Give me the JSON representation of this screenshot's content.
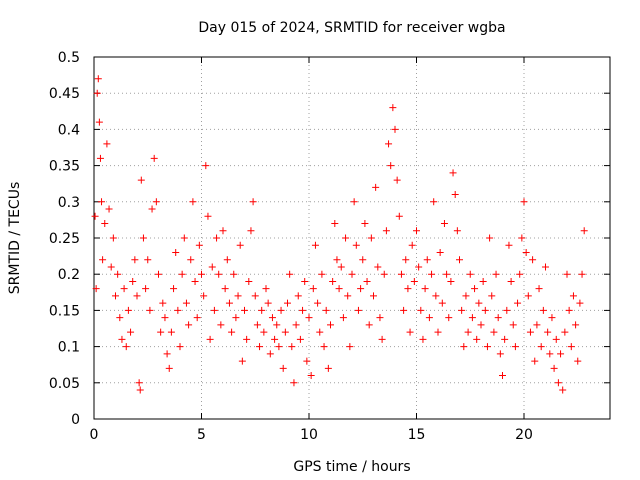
{
  "chart_data": {
    "type": "scatter",
    "title": "Day 015 of 2024, SRMTID for receiver wgba",
    "xlabel": "GPS time / hours",
    "ylabel": "SRMTID / TECUs",
    "xlim": [
      0,
      24
    ],
    "ylim": [
      0,
      0.5
    ],
    "xticks": [
      0,
      5,
      10,
      15,
      20
    ],
    "yticks": [
      0,
      0.05,
      0.1,
      0.15,
      0.2,
      0.25,
      0.3,
      0.35,
      0.4,
      0.45,
      0.5
    ],
    "grid": true,
    "marker": "+",
    "marker_color": "#ff0000",
    "series": [
      {
        "name": "SRMTID",
        "points": [
          [
            0.05,
            0.28
          ],
          [
            0.1,
            0.18
          ],
          [
            0.15,
            0.45
          ],
          [
            0.2,
            0.47
          ],
          [
            0.25,
            0.41
          ],
          [
            0.3,
            0.36
          ],
          [
            0.35,
            0.3
          ],
          [
            0.4,
            0.22
          ],
          [
            0.5,
            0.27
          ],
          [
            0.6,
            0.38
          ],
          [
            0.7,
            0.29
          ],
          [
            0.8,
            0.21
          ],
          [
            0.9,
            0.25
          ],
          [
            1.0,
            0.17
          ],
          [
            1.1,
            0.2
          ],
          [
            1.2,
            0.14
          ],
          [
            1.3,
            0.11
          ],
          [
            1.4,
            0.18
          ],
          [
            1.5,
            0.1
          ],
          [
            1.6,
            0.15
          ],
          [
            1.7,
            0.12
          ],
          [
            1.8,
            0.19
          ],
          [
            1.9,
            0.22
          ],
          [
            2.0,
            0.17
          ],
          [
            2.1,
            0.05
          ],
          [
            2.15,
            0.04
          ],
          [
            2.2,
            0.33
          ],
          [
            2.3,
            0.25
          ],
          [
            2.4,
            0.18
          ],
          [
            2.5,
            0.22
          ],
          [
            2.6,
            0.15
          ],
          [
            2.7,
            0.29
          ],
          [
            2.8,
            0.36
          ],
          [
            2.9,
            0.3
          ],
          [
            3.0,
            0.2
          ],
          [
            3.1,
            0.12
          ],
          [
            3.2,
            0.16
          ],
          [
            3.3,
            0.14
          ],
          [
            3.4,
            0.09
          ],
          [
            3.5,
            0.07
          ],
          [
            3.6,
            0.12
          ],
          [
            3.7,
            0.18
          ],
          [
            3.8,
            0.23
          ],
          [
            3.9,
            0.15
          ],
          [
            4.0,
            0.1
          ],
          [
            4.1,
            0.2
          ],
          [
            4.2,
            0.25
          ],
          [
            4.3,
            0.16
          ],
          [
            4.4,
            0.13
          ],
          [
            4.5,
            0.22
          ],
          [
            4.6,
            0.3
          ],
          [
            4.7,
            0.19
          ],
          [
            4.8,
            0.14
          ],
          [
            4.9,
            0.24
          ],
          [
            5.0,
            0.2
          ],
          [
            5.1,
            0.17
          ],
          [
            5.2,
            0.35
          ],
          [
            5.3,
            0.28
          ],
          [
            5.4,
            0.11
          ],
          [
            5.5,
            0.21
          ],
          [
            5.6,
            0.15
          ],
          [
            5.7,
            0.25
          ],
          [
            5.8,
            0.2
          ],
          [
            5.9,
            0.13
          ],
          [
            6.0,
            0.26
          ],
          [
            6.1,
            0.18
          ],
          [
            6.2,
            0.22
          ],
          [
            6.3,
            0.16
          ],
          [
            6.4,
            0.12
          ],
          [
            6.5,
            0.2
          ],
          [
            6.6,
            0.14
          ],
          [
            6.7,
            0.17
          ],
          [
            6.8,
            0.24
          ],
          [
            6.9,
            0.08
          ],
          [
            7.0,
            0.15
          ],
          [
            7.1,
            0.11
          ],
          [
            7.2,
            0.19
          ],
          [
            7.3,
            0.26
          ],
          [
            7.4,
            0.3
          ],
          [
            7.5,
            0.17
          ],
          [
            7.6,
            0.13
          ],
          [
            7.7,
            0.1
          ],
          [
            7.8,
            0.15
          ],
          [
            7.9,
            0.12
          ],
          [
            8.0,
            0.18
          ],
          [
            8.1,
            0.16
          ],
          [
            8.2,
            0.09
          ],
          [
            8.3,
            0.14
          ],
          [
            8.4,
            0.11
          ],
          [
            8.5,
            0.13
          ],
          [
            8.6,
            0.1
          ],
          [
            8.7,
            0.15
          ],
          [
            8.8,
            0.07
          ],
          [
            8.9,
            0.12
          ],
          [
            9.0,
            0.16
          ],
          [
            9.1,
            0.2
          ],
          [
            9.2,
            0.1
          ],
          [
            9.3,
            0.05
          ],
          [
            9.4,
            0.13
          ],
          [
            9.5,
            0.17
          ],
          [
            9.6,
            0.11
          ],
          [
            9.7,
            0.15
          ],
          [
            9.8,
            0.19
          ],
          [
            9.9,
            0.08
          ],
          [
            10.0,
            0.14
          ],
          [
            10.1,
            0.06
          ],
          [
            10.2,
            0.18
          ],
          [
            10.3,
            0.24
          ],
          [
            10.4,
            0.16
          ],
          [
            10.5,
            0.12
          ],
          [
            10.6,
            0.2
          ],
          [
            10.7,
            0.1
          ],
          [
            10.8,
            0.15
          ],
          [
            10.9,
            0.07
          ],
          [
            11.0,
            0.13
          ],
          [
            11.1,
            0.19
          ],
          [
            11.2,
            0.27
          ],
          [
            11.3,
            0.22
          ],
          [
            11.4,
            0.18
          ],
          [
            11.5,
            0.21
          ],
          [
            11.6,
            0.14
          ],
          [
            11.7,
            0.25
          ],
          [
            11.8,
            0.17
          ],
          [
            11.9,
            0.1
          ],
          [
            12.0,
            0.2
          ],
          [
            12.1,
            0.3
          ],
          [
            12.2,
            0.24
          ],
          [
            12.3,
            0.15
          ],
          [
            12.4,
            0.18
          ],
          [
            12.5,
            0.22
          ],
          [
            12.6,
            0.27
          ],
          [
            12.7,
            0.19
          ],
          [
            12.8,
            0.13
          ],
          [
            12.9,
            0.25
          ],
          [
            13.0,
            0.17
          ],
          [
            13.1,
            0.32
          ],
          [
            13.2,
            0.21
          ],
          [
            13.3,
            0.14
          ],
          [
            13.4,
            0.11
          ],
          [
            13.5,
            0.2
          ],
          [
            13.6,
            0.26
          ],
          [
            13.7,
            0.38
          ],
          [
            13.8,
            0.35
          ],
          [
            13.9,
            0.43
          ],
          [
            14.0,
            0.4
          ],
          [
            14.1,
            0.33
          ],
          [
            14.2,
            0.28
          ],
          [
            14.3,
            0.2
          ],
          [
            14.4,
            0.15
          ],
          [
            14.5,
            0.22
          ],
          [
            14.6,
            0.18
          ],
          [
            14.7,
            0.12
          ],
          [
            14.8,
            0.24
          ],
          [
            14.9,
            0.19
          ],
          [
            15.0,
            0.26
          ],
          [
            15.1,
            0.21
          ],
          [
            15.2,
            0.15
          ],
          [
            15.3,
            0.11
          ],
          [
            15.4,
            0.18
          ],
          [
            15.5,
            0.22
          ],
          [
            15.6,
            0.14
          ],
          [
            15.7,
            0.2
          ],
          [
            15.8,
            0.3
          ],
          [
            15.9,
            0.17
          ],
          [
            16.0,
            0.12
          ],
          [
            16.1,
            0.23
          ],
          [
            16.2,
            0.16
          ],
          [
            16.3,
            0.27
          ],
          [
            16.4,
            0.2
          ],
          [
            16.5,
            0.14
          ],
          [
            16.6,
            0.19
          ],
          [
            16.7,
            0.34
          ],
          [
            16.8,
            0.31
          ],
          [
            16.9,
            0.26
          ],
          [
            17.0,
            0.22
          ],
          [
            17.1,
            0.15
          ],
          [
            17.2,
            0.1
          ],
          [
            17.3,
            0.17
          ],
          [
            17.4,
            0.12
          ],
          [
            17.5,
            0.2
          ],
          [
            17.6,
            0.14
          ],
          [
            17.7,
            0.18
          ],
          [
            17.8,
            0.11
          ],
          [
            17.9,
            0.16
          ],
          [
            18.0,
            0.13
          ],
          [
            18.1,
            0.19
          ],
          [
            18.2,
            0.15
          ],
          [
            18.3,
            0.1
          ],
          [
            18.4,
            0.25
          ],
          [
            18.5,
            0.17
          ],
          [
            18.6,
            0.12
          ],
          [
            18.7,
            0.2
          ],
          [
            18.8,
            0.14
          ],
          [
            18.9,
            0.09
          ],
          [
            19.0,
            0.06
          ],
          [
            19.1,
            0.11
          ],
          [
            19.2,
            0.15
          ],
          [
            19.3,
            0.24
          ],
          [
            19.4,
            0.19
          ],
          [
            19.5,
            0.13
          ],
          [
            19.6,
            0.1
          ],
          [
            19.7,
            0.16
          ],
          [
            19.8,
            0.2
          ],
          [
            19.9,
            0.25
          ],
          [
            20.0,
            0.3
          ],
          [
            20.1,
            0.23
          ],
          [
            20.2,
            0.17
          ],
          [
            20.3,
            0.12
          ],
          [
            20.4,
            0.22
          ],
          [
            20.5,
            0.08
          ],
          [
            20.6,
            0.13
          ],
          [
            20.7,
            0.18
          ],
          [
            20.8,
            0.1
          ],
          [
            20.9,
            0.15
          ],
          [
            21.0,
            0.21
          ],
          [
            21.1,
            0.12
          ],
          [
            21.2,
            0.09
          ],
          [
            21.3,
            0.14
          ],
          [
            21.4,
            0.07
          ],
          [
            21.5,
            0.11
          ],
          [
            21.6,
            0.05
          ],
          [
            21.7,
            0.09
          ],
          [
            21.8,
            0.04
          ],
          [
            21.9,
            0.12
          ],
          [
            22.0,
            0.2
          ],
          [
            22.1,
            0.15
          ],
          [
            22.2,
            0.1
          ],
          [
            22.3,
            0.17
          ],
          [
            22.4,
            0.13
          ],
          [
            22.5,
            0.08
          ],
          [
            22.6,
            0.16
          ],
          [
            22.7,
            0.2
          ],
          [
            22.8,
            0.26
          ]
        ]
      }
    ]
  }
}
